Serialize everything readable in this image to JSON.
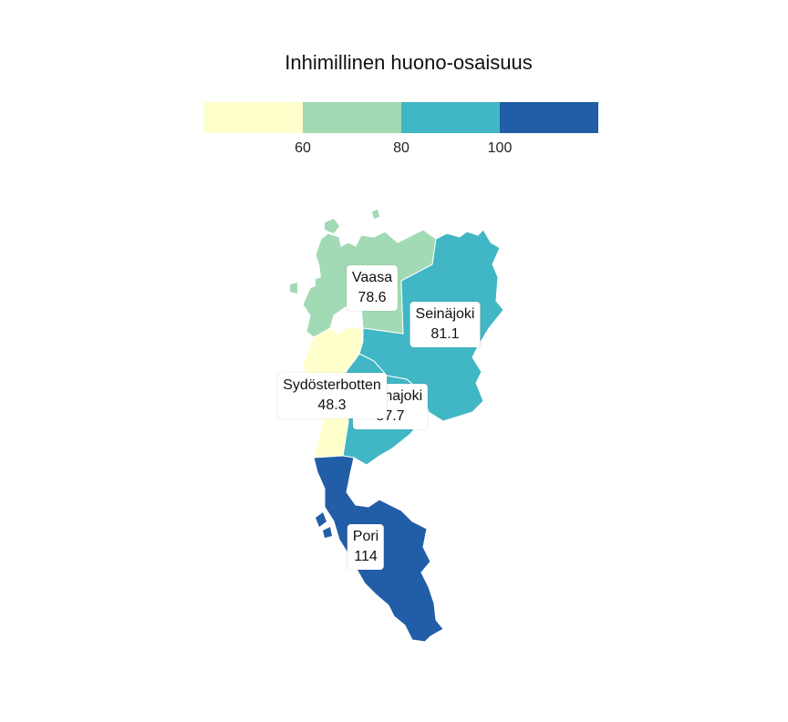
{
  "title": "Inhimillinen huono-osaisuus",
  "legend": {
    "colors": [
      "#ffffcc",
      "#a1dab4",
      "#41b6c4",
      "#225ea8"
    ],
    "ticks": [
      "60",
      "80",
      "100"
    ]
  },
  "regions": [
    {
      "name": "Vaasa",
      "value": "78.6"
    },
    {
      "name": "Seinäjoki",
      "value": "81.1"
    },
    {
      "name": "Sydösterbotten",
      "value": "48.3"
    },
    {
      "name": "Kauhajoki",
      "value": "87.7"
    },
    {
      "name": "Pori",
      "value": "114"
    }
  ]
}
